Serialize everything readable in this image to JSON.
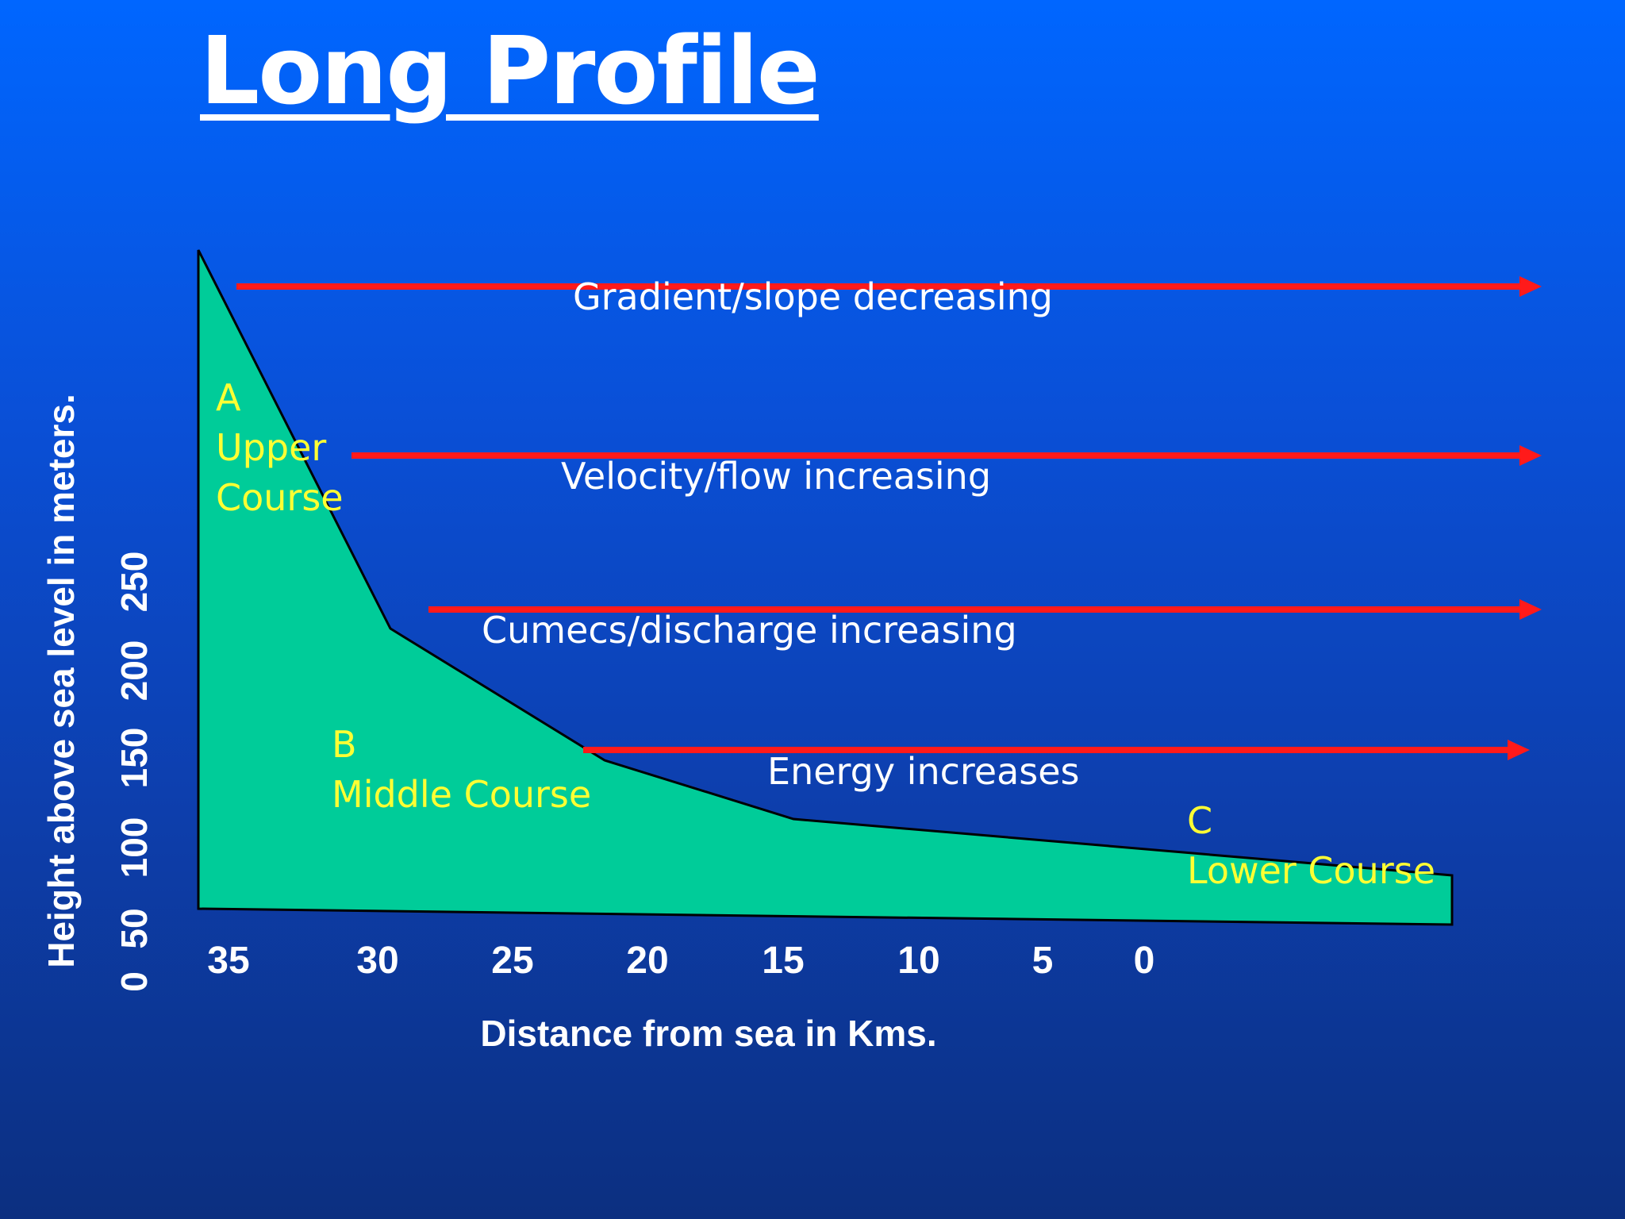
{
  "title": "Long Profile",
  "y_axis": {
    "label": "Height above sea level in meters.",
    "ticks": [
      "0",
      "50",
      "100",
      "150",
      "200",
      "250"
    ]
  },
  "x_axis": {
    "label": "Distance from sea in Kms.",
    "ticks": [
      "35",
      "30",
      "25",
      "20",
      "15",
      "10",
      "5",
      "0"
    ]
  },
  "sections": {
    "a": {
      "letter": "A",
      "line1": "Upper",
      "line2": "Course"
    },
    "b": {
      "letter": "B",
      "line1": "Middle Course"
    },
    "c": {
      "letter": "C",
      "line1": "Lower Course"
    }
  },
  "arrows": [
    {
      "label": "Gradient/slope decreasing"
    },
    {
      "label": "Velocity/flow increasing"
    },
    {
      "label": "Cumecs/discharge increasing"
    },
    {
      "label": "Energy increases"
    }
  ],
  "colors": {
    "profile_fill": "#00cc99",
    "arrow": "#ff1a1a",
    "section_label": "#ffff33",
    "text": "#ffffff"
  }
}
